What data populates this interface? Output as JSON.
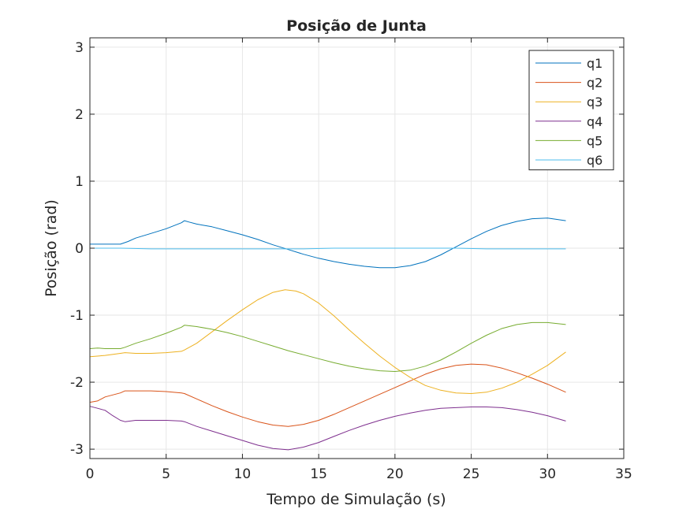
{
  "chart_data": {
    "type": "line",
    "title": "Posição de Junta",
    "xlabel": "Tempo de Simulação (s)",
    "ylabel": "Posição (rad)",
    "xlim": [
      0,
      35
    ],
    "ylim": [
      -3.14,
      3.14
    ],
    "xticks": [
      0,
      5,
      10,
      15,
      20,
      25,
      30,
      35
    ],
    "yticks": [
      -3,
      -2,
      -1,
      0,
      1,
      2,
      3
    ],
    "grid": true,
    "legend_position": "top-right",
    "series": [
      {
        "name": "q1",
        "color": "#0072BD",
        "points": [
          [
            0,
            0.06
          ],
          [
            0.8,
            0.06
          ],
          [
            2,
            0.06
          ],
          [
            2.5,
            0.1
          ],
          [
            3,
            0.15
          ],
          [
            4,
            0.22
          ],
          [
            5,
            0.29
          ],
          [
            6,
            0.38
          ],
          [
            6.2,
            0.41
          ],
          [
            6.5,
            0.39
          ],
          [
            7,
            0.36
          ],
          [
            8,
            0.32
          ],
          [
            9,
            0.26
          ],
          [
            10,
            0.2
          ],
          [
            11,
            0.13
          ],
          [
            12,
            0.05
          ],
          [
            13,
            -0.02
          ],
          [
            14,
            -0.09
          ],
          [
            15,
            -0.15
          ],
          [
            16,
            -0.2
          ],
          [
            17,
            -0.24
          ],
          [
            18,
            -0.27
          ],
          [
            19,
            -0.29
          ],
          [
            20,
            -0.29
          ],
          [
            21,
            -0.26
          ],
          [
            22,
            -0.2
          ],
          [
            23,
            -0.1
          ],
          [
            24,
            0.02
          ],
          [
            25,
            0.14
          ],
          [
            26,
            0.25
          ],
          [
            27,
            0.34
          ],
          [
            28,
            0.4
          ],
          [
            29,
            0.44
          ],
          [
            30,
            0.45
          ],
          [
            31.2,
            0.41
          ]
        ]
      },
      {
        "name": "q2",
        "color": "#D95319",
        "points": [
          [
            0,
            -2.3
          ],
          [
            0.5,
            -2.28
          ],
          [
            1,
            -2.22
          ],
          [
            2,
            -2.16
          ],
          [
            2.3,
            -2.13
          ],
          [
            3,
            -2.13
          ],
          [
            4,
            -2.13
          ],
          [
            5,
            -2.14
          ],
          [
            6,
            -2.16
          ],
          [
            6.2,
            -2.17
          ],
          [
            7,
            -2.25
          ],
          [
            8,
            -2.35
          ],
          [
            9,
            -2.44
          ],
          [
            10,
            -2.52
          ],
          [
            11,
            -2.59
          ],
          [
            12,
            -2.64
          ],
          [
            13,
            -2.66
          ],
          [
            14,
            -2.63
          ],
          [
            15,
            -2.57
          ],
          [
            16,
            -2.48
          ],
          [
            17,
            -2.38
          ],
          [
            18,
            -2.28
          ],
          [
            19,
            -2.18
          ],
          [
            20,
            -2.08
          ],
          [
            21,
            -1.98
          ],
          [
            22,
            -1.88
          ],
          [
            23,
            -1.8
          ],
          [
            24,
            -1.75
          ],
          [
            25,
            -1.73
          ],
          [
            26,
            -1.74
          ],
          [
            27,
            -1.79
          ],
          [
            28,
            -1.86
          ],
          [
            29,
            -1.94
          ],
          [
            30,
            -2.03
          ],
          [
            31.2,
            -2.15
          ]
        ]
      },
      {
        "name": "q3",
        "color": "#EDB120",
        "points": [
          [
            0,
            -1.62
          ],
          [
            1,
            -1.6
          ],
          [
            2,
            -1.57
          ],
          [
            2.3,
            -1.56
          ],
          [
            3,
            -1.57
          ],
          [
            4,
            -1.57
          ],
          [
            5,
            -1.56
          ],
          [
            6,
            -1.54
          ],
          [
            6.2,
            -1.52
          ],
          [
            7,
            -1.42
          ],
          [
            8,
            -1.25
          ],
          [
            9,
            -1.08
          ],
          [
            10,
            -0.92
          ],
          [
            11,
            -0.77
          ],
          [
            12,
            -0.66
          ],
          [
            12.8,
            -0.62
          ],
          [
            13.5,
            -0.64
          ],
          [
            14,
            -0.68
          ],
          [
            15,
            -0.82
          ],
          [
            16,
            -1.01
          ],
          [
            17,
            -1.22
          ],
          [
            18,
            -1.42
          ],
          [
            19,
            -1.61
          ],
          [
            20,
            -1.78
          ],
          [
            21,
            -1.93
          ],
          [
            22,
            -2.05
          ],
          [
            23,
            -2.12
          ],
          [
            24,
            -2.16
          ],
          [
            25,
            -2.17
          ],
          [
            26,
            -2.15
          ],
          [
            27,
            -2.09
          ],
          [
            28,
            -2.0
          ],
          [
            29,
            -1.88
          ],
          [
            30,
            -1.75
          ],
          [
            31.2,
            -1.55
          ]
        ]
      },
      {
        "name": "q4",
        "color": "#7E2F8E",
        "points": [
          [
            0,
            -2.36
          ],
          [
            0.5,
            -2.39
          ],
          [
            1,
            -2.42
          ],
          [
            1.5,
            -2.5
          ],
          [
            2,
            -2.57
          ],
          [
            2.3,
            -2.59
          ],
          [
            3,
            -2.57
          ],
          [
            4,
            -2.57
          ],
          [
            5,
            -2.57
          ],
          [
            6,
            -2.58
          ],
          [
            6.2,
            -2.59
          ],
          [
            7,
            -2.66
          ],
          [
            8,
            -2.73
          ],
          [
            9,
            -2.8
          ],
          [
            10,
            -2.87
          ],
          [
            11,
            -2.94
          ],
          [
            12,
            -2.99
          ],
          [
            13,
            -3.01
          ],
          [
            14,
            -2.97
          ],
          [
            15,
            -2.9
          ],
          [
            16,
            -2.81
          ],
          [
            17,
            -2.72
          ],
          [
            18,
            -2.64
          ],
          [
            19,
            -2.57
          ],
          [
            20,
            -2.51
          ],
          [
            21,
            -2.46
          ],
          [
            22,
            -2.42
          ],
          [
            23,
            -2.39
          ],
          [
            24,
            -2.38
          ],
          [
            25,
            -2.37
          ],
          [
            26,
            -2.37
          ],
          [
            27,
            -2.38
          ],
          [
            28,
            -2.41
          ],
          [
            29,
            -2.45
          ],
          [
            30,
            -2.5
          ],
          [
            31.2,
            -2.58
          ]
        ]
      },
      {
        "name": "q5",
        "color": "#77AC30",
        "points": [
          [
            0,
            -1.5
          ],
          [
            0.5,
            -1.49
          ],
          [
            1,
            -1.5
          ],
          [
            2,
            -1.5
          ],
          [
            2.3,
            -1.48
          ],
          [
            3,
            -1.42
          ],
          [
            4,
            -1.35
          ],
          [
            5,
            -1.27
          ],
          [
            6,
            -1.18
          ],
          [
            6.2,
            -1.15
          ],
          [
            7,
            -1.17
          ],
          [
            8,
            -1.21
          ],
          [
            9,
            -1.26
          ],
          [
            10,
            -1.32
          ],
          [
            11,
            -1.39
          ],
          [
            12,
            -1.46
          ],
          [
            13,
            -1.53
          ],
          [
            14,
            -1.59
          ],
          [
            15,
            -1.65
          ],
          [
            16,
            -1.71
          ],
          [
            17,
            -1.76
          ],
          [
            18,
            -1.8
          ],
          [
            19,
            -1.83
          ],
          [
            20,
            -1.84
          ],
          [
            21,
            -1.82
          ],
          [
            22,
            -1.76
          ],
          [
            23,
            -1.67
          ],
          [
            24,
            -1.55
          ],
          [
            25,
            -1.42
          ],
          [
            26,
            -1.3
          ],
          [
            27,
            -1.2
          ],
          [
            28,
            -1.14
          ],
          [
            29,
            -1.11
          ],
          [
            30,
            -1.11
          ],
          [
            31.2,
            -1.14
          ]
        ]
      },
      {
        "name": "q6",
        "color": "#4DBEEE",
        "points": [
          [
            0,
            0.0
          ],
          [
            2,
            0.0
          ],
          [
            4,
            -0.01
          ],
          [
            6,
            -0.01
          ],
          [
            8,
            -0.01
          ],
          [
            10,
            -0.01
          ],
          [
            12,
            -0.01
          ],
          [
            14,
            -0.01
          ],
          [
            16,
            0.0
          ],
          [
            18,
            0.0
          ],
          [
            20,
            0.0
          ],
          [
            22,
            0.0
          ],
          [
            24,
            0.0
          ],
          [
            26,
            -0.01
          ],
          [
            28,
            -0.01
          ],
          [
            30,
            -0.01
          ],
          [
            31.2,
            -0.01
          ]
        ]
      }
    ]
  }
}
